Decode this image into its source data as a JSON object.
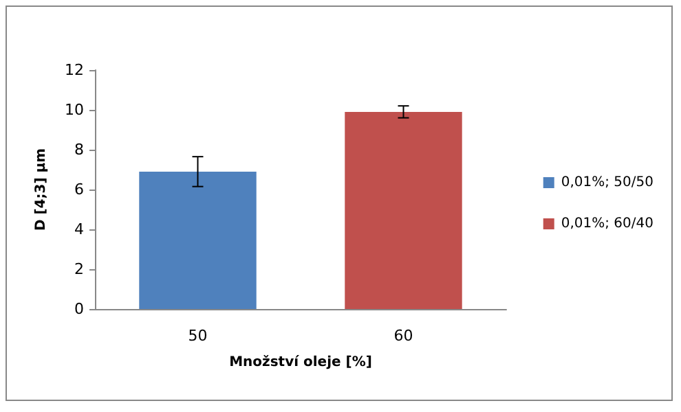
{
  "chart_data": {
    "type": "bar",
    "xlabel": "Množství oleje [%]",
    "ylabel": "D [4;3] µm",
    "categories": [
      "50",
      "60"
    ],
    "series": [
      {
        "name": "0,01%; 50/50",
        "color": "#4f81bd",
        "values": [
          6.9,
          null
        ],
        "errors": [
          0.75,
          null
        ]
      },
      {
        "name": "0,01%; 60/40",
        "color": "#c0504d",
        "values": [
          null,
          9.9
        ],
        "errors": [
          null,
          0.3
        ]
      }
    ],
    "ylim": [
      0,
      12
    ],
    "yticks": [
      0,
      2,
      4,
      6,
      8,
      10,
      12
    ],
    "grid": false,
    "legend": "right"
  }
}
